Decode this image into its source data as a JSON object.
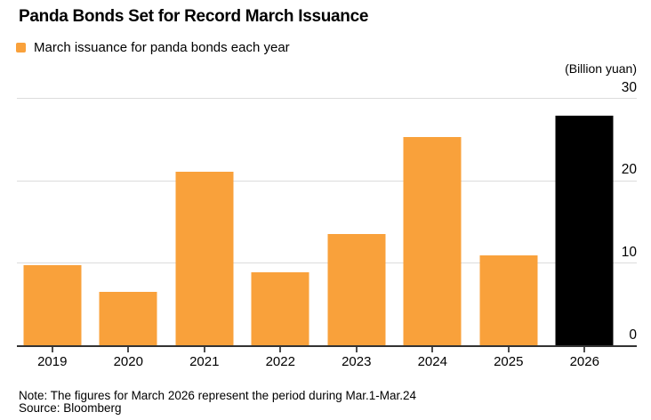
{
  "chart": {
    "title": "Panda Bonds Set for Record March Issuance",
    "legend_label": "March issuance for panda bonds each year",
    "unit_label": "(Billion yuan)",
    "note": "Note: The figures for March 2026 represent the period during Mar.1-Mar.24",
    "source": "Source: Bloomberg"
  },
  "colors": {
    "bar_orange": "#F9A13B",
    "bar_highlight_black": "#000000",
    "gridline": "#dcdcdc",
    "axis": "#333333"
  },
  "chart_data": {
    "type": "bar",
    "title": "Panda Bonds Set for Record March Issuance",
    "legend": "March issuance for panda bonds each year",
    "unit": "(Billion yuan)",
    "categories": [
      "2019",
      "2020",
      "2021",
      "2022",
      "2023",
      "2024",
      "2025",
      "2026"
    ],
    "values": [
      9.8,
      6.6,
      21.2,
      9.0,
      13.6,
      25.4,
      11.0,
      28.0
    ],
    "ylim": [
      0,
      30
    ],
    "yticks": [
      0,
      10,
      20,
      30
    ],
    "ytick_side": "right",
    "grid": "horizontal",
    "bar_color": "#F9A13B",
    "highlight_category": "2026",
    "highlight_color": "#000000",
    "note": "Note: The figures for March 2026 represent the period during Mar.1-Mar.24",
    "source": "Source: Bloomberg"
  }
}
